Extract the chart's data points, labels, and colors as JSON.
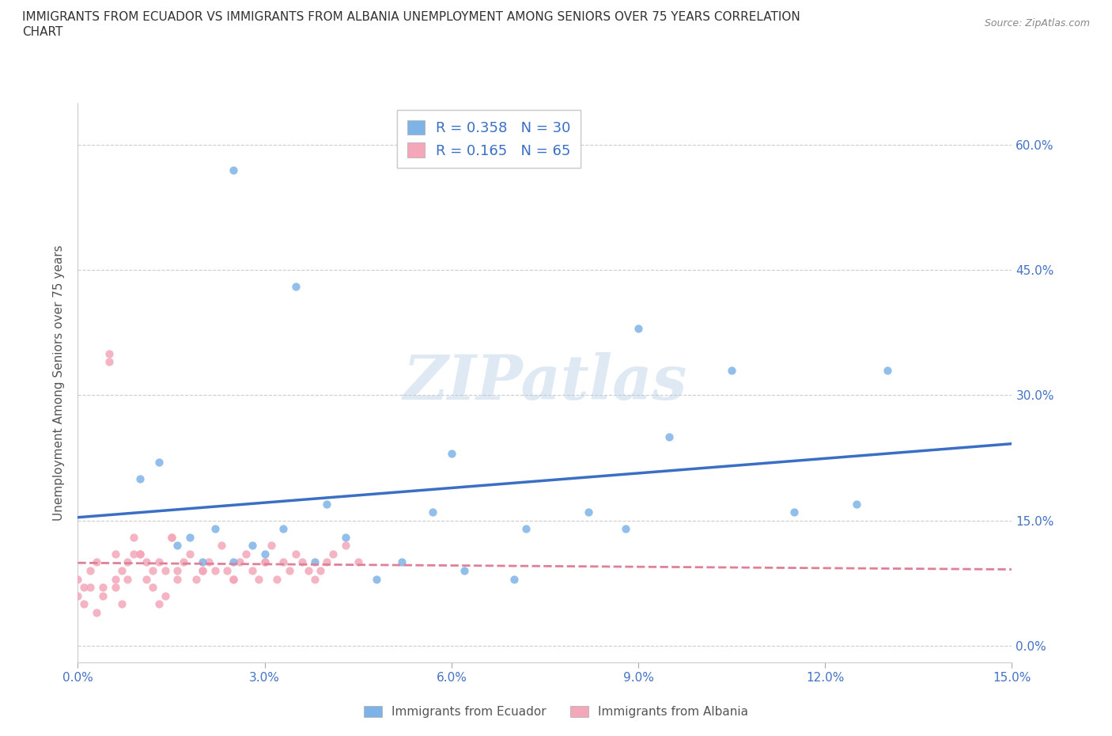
{
  "title_line1": "IMMIGRANTS FROM ECUADOR VS IMMIGRANTS FROM ALBANIA UNEMPLOYMENT AMONG SENIORS OVER 75 YEARS CORRELATION",
  "title_line2": "CHART",
  "source": "Source: ZipAtlas.com",
  "ylabel": "Unemployment Among Seniors over 75 years",
  "xlim": [
    0.0,
    0.15
  ],
  "ylim": [
    -0.02,
    0.65
  ],
  "xticks": [
    0.0,
    0.03,
    0.06,
    0.09,
    0.12,
    0.15
  ],
  "yticks": [
    0.0,
    0.15,
    0.3,
    0.45,
    0.6
  ],
  "xticklabels": [
    "0.0%",
    "3.0%",
    "6.0%",
    "9.0%",
    "12.0%",
    "15.0%"
  ],
  "yticklabels": [
    "0.0%",
    "15.0%",
    "30.0%",
    "45.0%",
    "60.0%"
  ],
  "ecuador_color": "#7eb3e8",
  "albania_color": "#f4a7b9",
  "ecuador_line_color": "#3a6fc4",
  "albania_line_color": "#e08098",
  "ecuador_R": 0.358,
  "ecuador_N": 30,
  "albania_R": 0.165,
  "albania_N": 65,
  "watermark": "ZIPatlas",
  "ecuador_x": [
    0.025,
    0.035,
    0.01,
    0.013,
    0.016,
    0.018,
    0.02,
    0.022,
    0.025,
    0.028,
    0.03,
    0.033,
    0.038,
    0.04,
    0.043,
    0.048,
    0.052,
    0.057,
    0.062,
    0.072,
    0.082,
    0.088,
    0.095,
    0.105,
    0.115,
    0.125,
    0.13,
    0.06,
    0.09,
    0.07
  ],
  "ecuador_y": [
    0.57,
    0.43,
    0.2,
    0.22,
    0.12,
    0.13,
    0.1,
    0.14,
    0.1,
    0.12,
    0.11,
    0.14,
    0.1,
    0.17,
    0.13,
    0.08,
    0.1,
    0.16,
    0.09,
    0.14,
    0.16,
    0.14,
    0.25,
    0.33,
    0.16,
    0.17,
    0.33,
    0.23,
    0.38,
    0.08
  ],
  "albania_x": [
    0.0,
    0.001,
    0.002,
    0.003,
    0.004,
    0.005,
    0.006,
    0.006,
    0.007,
    0.008,
    0.009,
    0.01,
    0.011,
    0.012,
    0.013,
    0.014,
    0.015,
    0.016,
    0.017,
    0.018,
    0.019,
    0.02,
    0.021,
    0.022,
    0.023,
    0.024,
    0.025,
    0.026,
    0.027,
    0.028,
    0.029,
    0.03,
    0.031,
    0.032,
    0.033,
    0.034,
    0.035,
    0.036,
    0.037,
    0.038,
    0.039,
    0.04,
    0.041,
    0.043,
    0.045,
    0.0,
    0.001,
    0.002,
    0.003,
    0.004,
    0.005,
    0.006,
    0.007,
    0.008,
    0.009,
    0.01,
    0.011,
    0.012,
    0.013,
    0.014,
    0.015,
    0.016,
    0.02,
    0.025,
    0.03
  ],
  "albania_y": [
    0.08,
    0.07,
    0.09,
    0.1,
    0.07,
    0.34,
    0.08,
    0.11,
    0.09,
    0.1,
    0.13,
    0.11,
    0.08,
    0.09,
    0.1,
    0.09,
    0.13,
    0.09,
    0.1,
    0.11,
    0.08,
    0.09,
    0.1,
    0.09,
    0.12,
    0.09,
    0.08,
    0.1,
    0.11,
    0.09,
    0.08,
    0.1,
    0.12,
    0.08,
    0.1,
    0.09,
    0.11,
    0.1,
    0.09,
    0.08,
    0.09,
    0.1,
    0.11,
    0.12,
    0.1,
    0.06,
    0.05,
    0.07,
    0.04,
    0.06,
    0.35,
    0.07,
    0.05,
    0.08,
    0.11,
    0.11,
    0.1,
    0.07,
    0.05,
    0.06,
    0.13,
    0.08,
    0.09,
    0.08,
    0.1
  ]
}
